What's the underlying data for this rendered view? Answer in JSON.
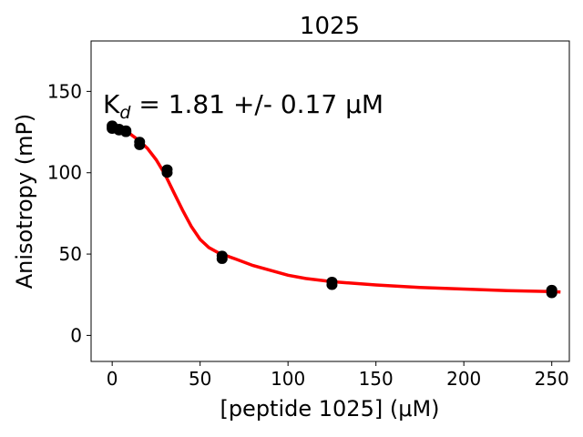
{
  "chart_data": {
    "type": "scatter",
    "title": "1025",
    "xlabel": "[peptide 1025] (μM)",
    "ylabel": "Anisotropy (mP)",
    "xlim": [
      -12,
      260
    ],
    "ylim": [
      -16,
      181
    ],
    "xticks": [
      0,
      50,
      100,
      150,
      200,
      250
    ],
    "yticks": [
      0,
      50,
      100,
      150
    ],
    "grid": false,
    "annotation": "K_d = 1.81 +/- 0.17 μM",
    "series": [
      {
        "kind": "points",
        "color": "#000000",
        "points": [
          [
            0,
            128
          ],
          [
            0,
            127
          ],
          [
            0,
            129
          ],
          [
            3.9,
            126
          ],
          [
            3.9,
            127
          ],
          [
            7.8,
            126
          ],
          [
            7.8,
            125
          ],
          [
            15.6,
            117
          ],
          [
            15.6,
            119
          ],
          [
            31.25,
            100
          ],
          [
            31.25,
            102
          ],
          [
            62.5,
            47
          ],
          [
            62.5,
            49
          ],
          [
            125,
            31
          ],
          [
            125,
            33
          ],
          [
            250,
            26
          ],
          [
            250,
            28
          ]
        ]
      },
      {
        "kind": "fit",
        "color": "#ff0000",
        "points": [
          [
            0,
            128
          ],
          [
            5,
            127
          ],
          [
            10,
            124
          ],
          [
            15,
            120
          ],
          [
            20,
            115
          ],
          [
            25,
            108
          ],
          [
            30,
            99
          ],
          [
            35,
            88
          ],
          [
            40,
            77
          ],
          [
            45,
            67
          ],
          [
            50,
            59
          ],
          [
            55,
            54
          ],
          [
            60,
            51
          ],
          [
            65,
            49
          ],
          [
            70,
            47
          ],
          [
            80,
            43
          ],
          [
            90,
            40
          ],
          [
            100,
            37
          ],
          [
            110,
            35
          ],
          [
            125,
            33
          ],
          [
            150,
            31
          ],
          [
            175,
            29.5
          ],
          [
            200,
            28.5
          ],
          [
            225,
            27.5
          ],
          [
            250,
            27
          ],
          [
            255,
            26.7
          ]
        ]
      }
    ]
  }
}
